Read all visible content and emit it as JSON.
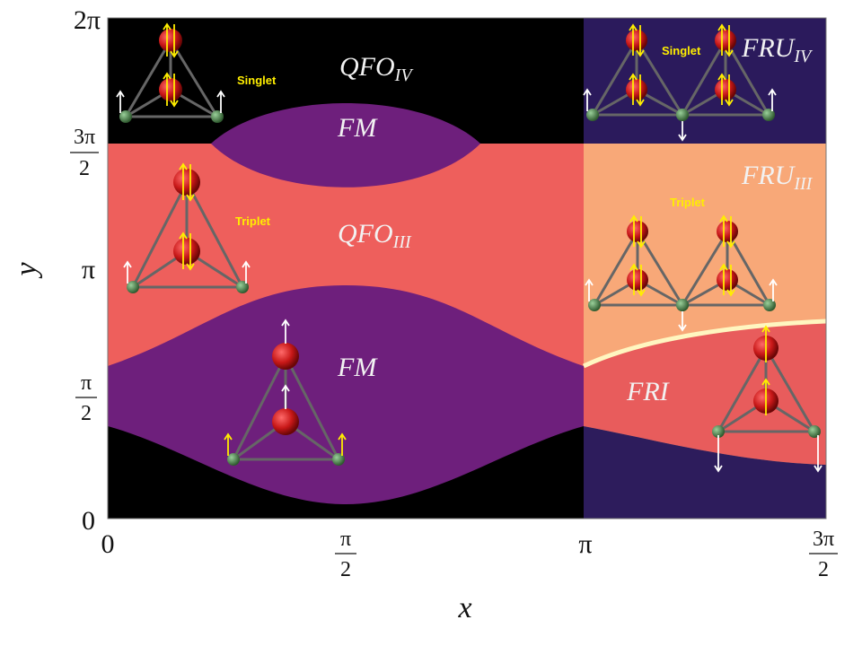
{
  "axes": {
    "x_label": "x",
    "y_label": "y",
    "x_ticks": [
      {
        "text": "0"
      },
      {
        "numerator": "π",
        "denominator": "2"
      },
      {
        "text": "π"
      },
      {
        "numerator": "3π",
        "denominator": "2"
      }
    ],
    "y_ticks": [
      {
        "text": "0"
      },
      {
        "numerator": "π",
        "denominator": "2"
      },
      {
        "text": "π"
      },
      {
        "numerator": "3π",
        "denominator": "2"
      },
      {
        "text": "2π"
      }
    ]
  },
  "regions": [
    {
      "base": "QFO",
      "sub": "IV"
    },
    {
      "base": "FM"
    },
    {
      "base": "QFO",
      "sub": "III"
    },
    {
      "base": "FM"
    },
    {
      "base": "FRU",
      "sub": "IV"
    },
    {
      "base": "FRU",
      "sub": "III"
    },
    {
      "base": "FRI"
    }
  ],
  "annotations": [
    "Singlet",
    "Triplet",
    "Singlet",
    "Triplet"
  ]
}
